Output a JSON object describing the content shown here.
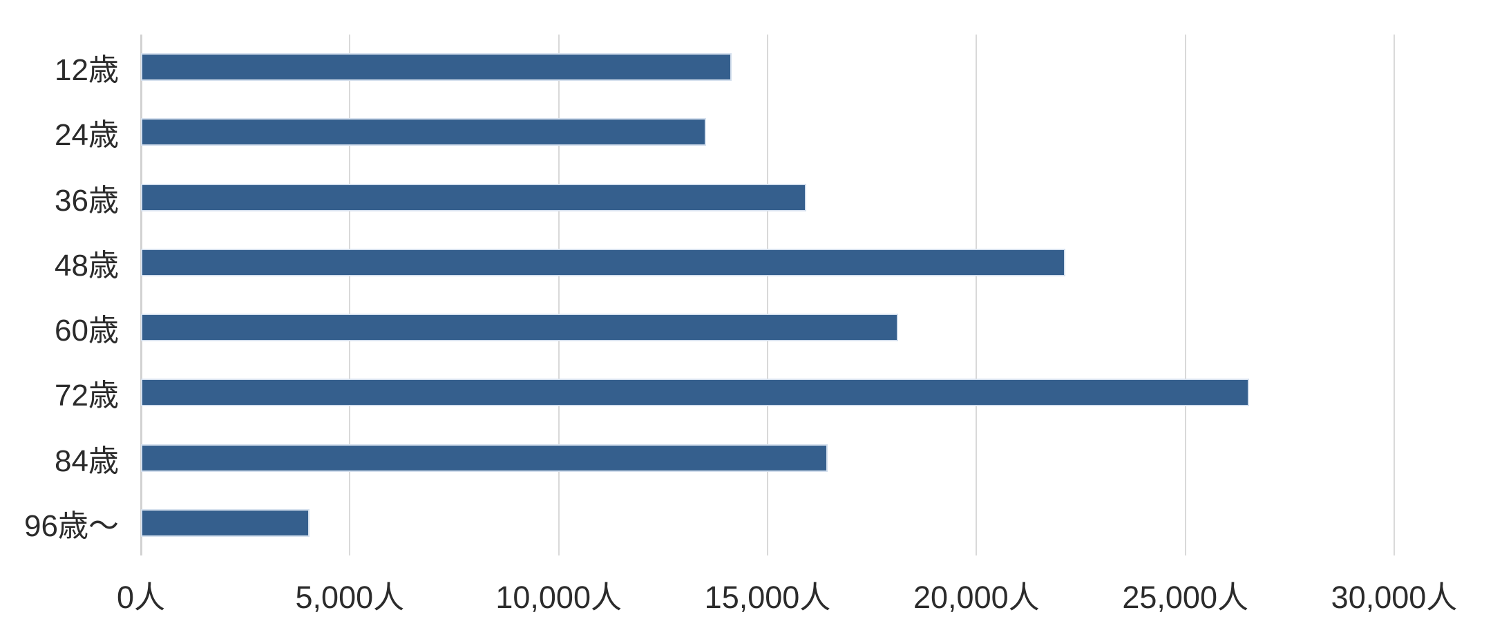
{
  "chart_data": {
    "type": "bar",
    "orientation": "horizontal",
    "title": "",
    "xlabel": "",
    "ylabel": "",
    "categories": [
      "12歳",
      "24歳",
      "36歳",
      "48歳",
      "60歳",
      "72歳",
      "84歳",
      "96歳〜"
    ],
    "values": [
      14100,
      13500,
      15900,
      22100,
      18100,
      26500,
      16400,
      4000
    ],
    "unit": "人",
    "xlim": [
      0,
      30000
    ],
    "x_ticks": [
      0,
      5000,
      10000,
      15000,
      20000,
      25000,
      30000
    ],
    "x_tick_labels": [
      "0人",
      "5,000人",
      "10,000人",
      "15,000人",
      "20,000人",
      "25,000人",
      "30,000人"
    ],
    "grid": true,
    "legend": false,
    "bar_color": "#355F8D",
    "gridline_color": "#d9d9d9",
    "text_color": "#2b2b2b"
  }
}
